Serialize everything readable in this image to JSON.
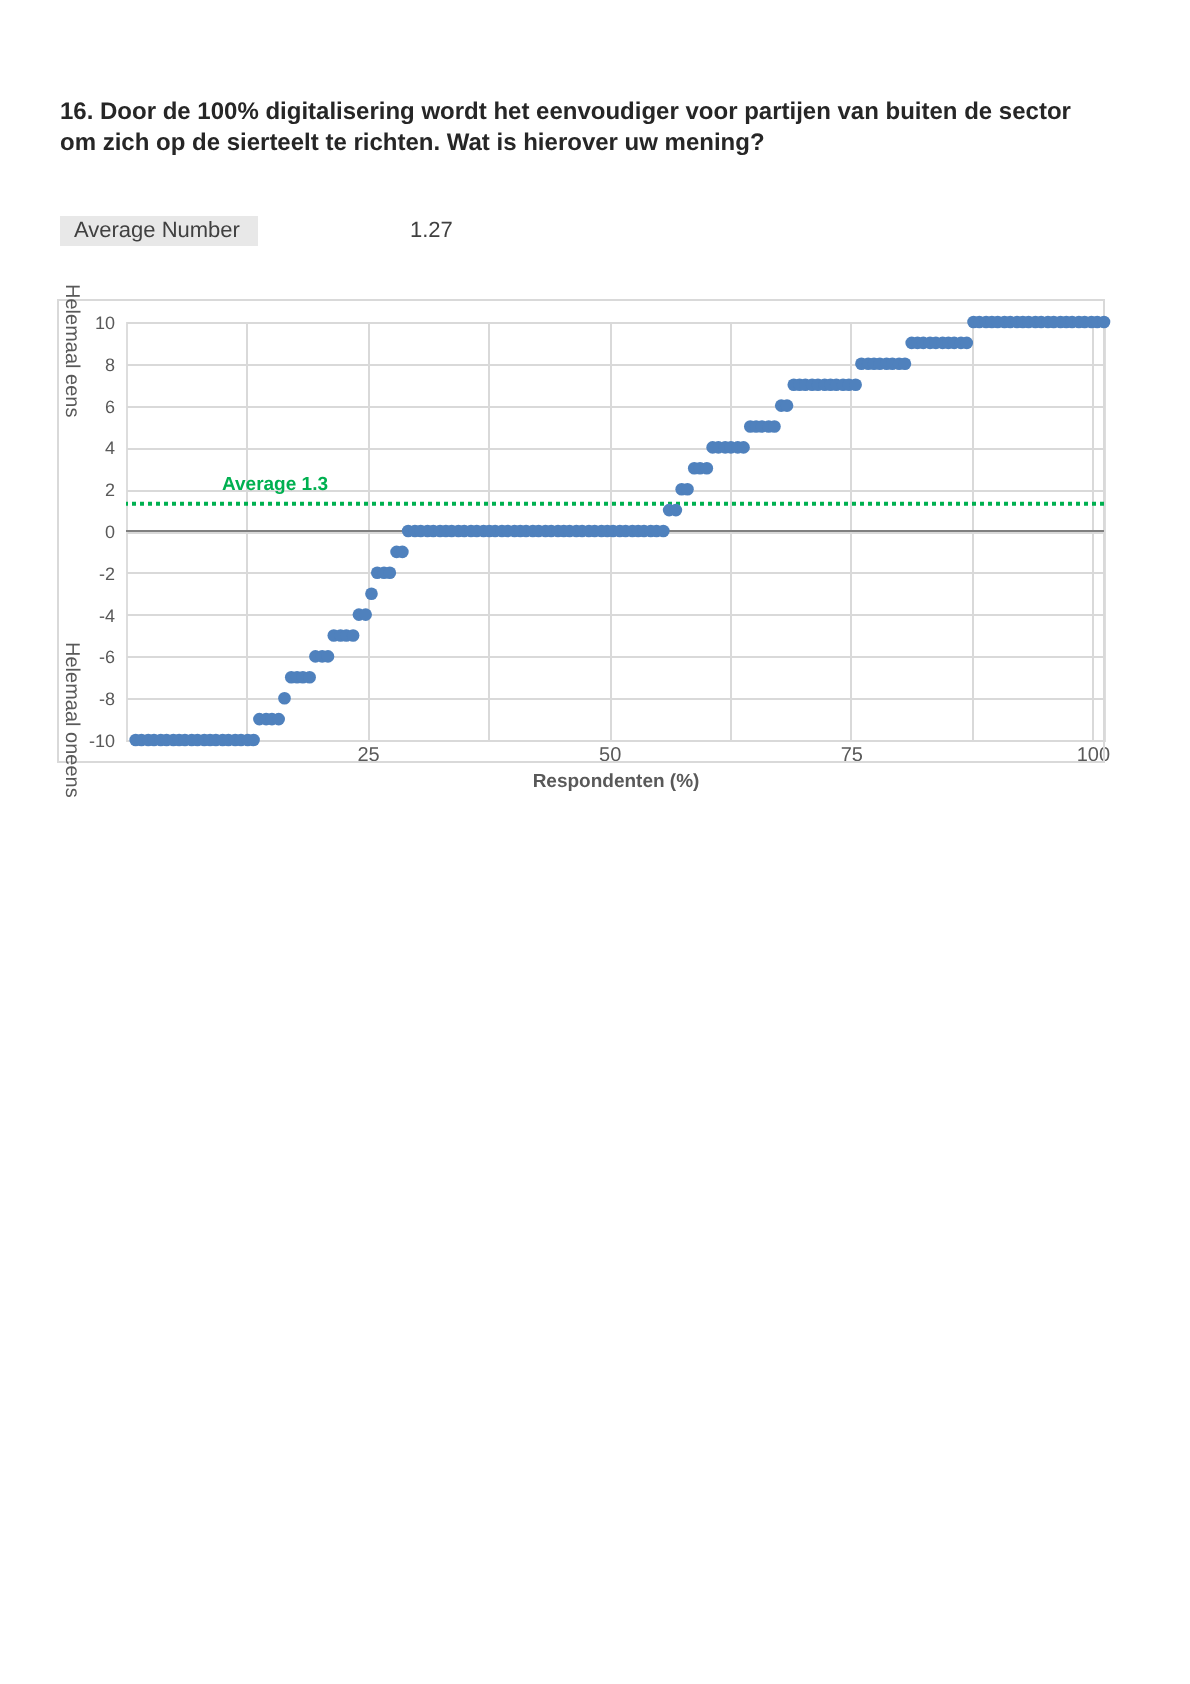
{
  "chart_data": {
    "type": "scatter",
    "title": "16. Door de 100% digitalisering wordt het eenvoudiger voor partijen van buiten de sector om zich op de sierteelt te richten. Wat is hierover uw mening?",
    "xlabel": "Respondenten (%)",
    "annotations": [
      "Average Number",
      "1.27",
      "Helemaal eens",
      "Helemaal oneens"
    ],
    "xlim": [
      0,
      101.2
    ],
    "ylim": [
      -10,
      10
    ],
    "xticks": [
      {
        "value": 12.5,
        "label": null
      },
      25,
      {
        "value": 37.5,
        "label": null
      },
      50,
      {
        "value": 62.5,
        "label": null
      },
      75,
      {
        "value": 87.5,
        "label": null
      },
      100
    ],
    "yticks": [
      -10,
      -8,
      -6,
      -4,
      -2,
      0,
      2,
      4,
      6,
      8,
      10
    ],
    "grid": true,
    "marker": "circle",
    "ref_lines": [
      {
        "axis": "y",
        "value": 0,
        "color": "#808080"
      },
      {
        "axis": "y",
        "value": 1.3,
        "label": "Average 1.3",
        "color": "#00b050",
        "line_style": "dotted"
      }
    ],
    "series": [
      {
        "color": "#4f81bd",
        "x": [
          1.0,
          1.6,
          2.3,
          2.9,
          3.6,
          4.2,
          4.9,
          5.5,
          6.1,
          6.8,
          7.4,
          8.1,
          8.7,
          9.3,
          10.0,
          10.6,
          11.3,
          11.9,
          12.6,
          13.2,
          13.8,
          14.5,
          15.1,
          15.8,
          16.4,
          17.1,
          17.7,
          18.3,
          19.0,
          19.6,
          20.3,
          20.9,
          21.5,
          22.2,
          22.8,
          23.5,
          24.1,
          24.8,
          25.4,
          26.0,
          26.7,
          27.3,
          28.0,
          28.6,
          29.2,
          29.9,
          30.5,
          31.2,
          31.8,
          32.5,
          33.1,
          33.7,
          34.4,
          35.0,
          35.7,
          36.3,
          37.0,
          37.6,
          38.2,
          38.9,
          39.5,
          40.2,
          40.8,
          41.4,
          42.1,
          42.7,
          43.4,
          44.0,
          44.7,
          45.3,
          45.9,
          46.6,
          47.2,
          47.9,
          48.5,
          49.2,
          49.8,
          50.4,
          51.1,
          51.7,
          52.4,
          53.0,
          53.6,
          54.3,
          54.9,
          55.6,
          56.2,
          56.9,
          57.5,
          58.1,
          58.8,
          59.4,
          60.1,
          60.7,
          61.3,
          62.0,
          62.6,
          63.3,
          63.9,
          64.6,
          65.2,
          65.8,
          66.5,
          67.1,
          67.8,
          68.4,
          69.1,
          69.7,
          70.3,
          71.0,
          71.6,
          72.3,
          72.9,
          73.5,
          74.2,
          74.8,
          75.5,
          76.1,
          76.8,
          77.4,
          78.0,
          78.7,
          79.3,
          80.0,
          80.6,
          81.3,
          81.9,
          82.5,
          83.2,
          83.8,
          84.5,
          85.1,
          85.7,
          86.4,
          87.0,
          87.7,
          88.3,
          89.0,
          89.6,
          90.2,
          90.9,
          91.5,
          92.2,
          92.8,
          93.4,
          94.1,
          94.7,
          95.4,
          96.0,
          96.7,
          97.3,
          97.9,
          98.6,
          99.2,
          99.9,
          100.5,
          101.2
        ],
        "values": [
          -10,
          -10,
          -10,
          -10,
          -10,
          -10,
          -10,
          -10,
          -10,
          -10,
          -10,
          -10,
          -10,
          -10,
          -10,
          -10,
          -10,
          -10,
          -10,
          -10,
          -9,
          -9,
          -9,
          -9,
          -8,
          -7,
          -7,
          -7,
          -7,
          -6,
          -6,
          -6,
          -5,
          -5,
          -5,
          -5,
          -4,
          -4,
          -3,
          -2,
          -2,
          -2,
          -1,
          -1,
          0,
          0,
          0,
          0,
          0,
          0,
          0,
          0,
          0,
          0,
          0,
          0,
          0,
          0,
          0,
          0,
          0,
          0,
          0,
          0,
          0,
          0,
          0,
          0,
          0,
          0,
          0,
          0,
          0,
          0,
          0,
          0,
          0,
          0,
          0,
          0,
          0,
          0,
          0,
          0,
          0,
          0,
          1,
          1,
          2,
          2,
          3,
          3,
          3,
          4,
          4,
          4,
          4,
          4,
          4,
          5,
          5,
          5,
          5,
          5,
          6,
          6,
          7,
          7,
          7,
          7,
          7,
          7,
          7,
          7,
          7,
          7,
          7,
          8,
          8,
          8,
          8,
          8,
          8,
          8,
          8,
          9,
          9,
          9,
          9,
          9,
          9,
          9,
          9,
          9,
          9,
          10,
          10,
          10,
          10,
          10,
          10,
          10,
          10,
          10,
          10,
          10,
          10,
          10,
          10,
          10,
          10,
          10,
          10,
          10,
          10,
          10,
          10
        ]
      }
    ]
  }
}
